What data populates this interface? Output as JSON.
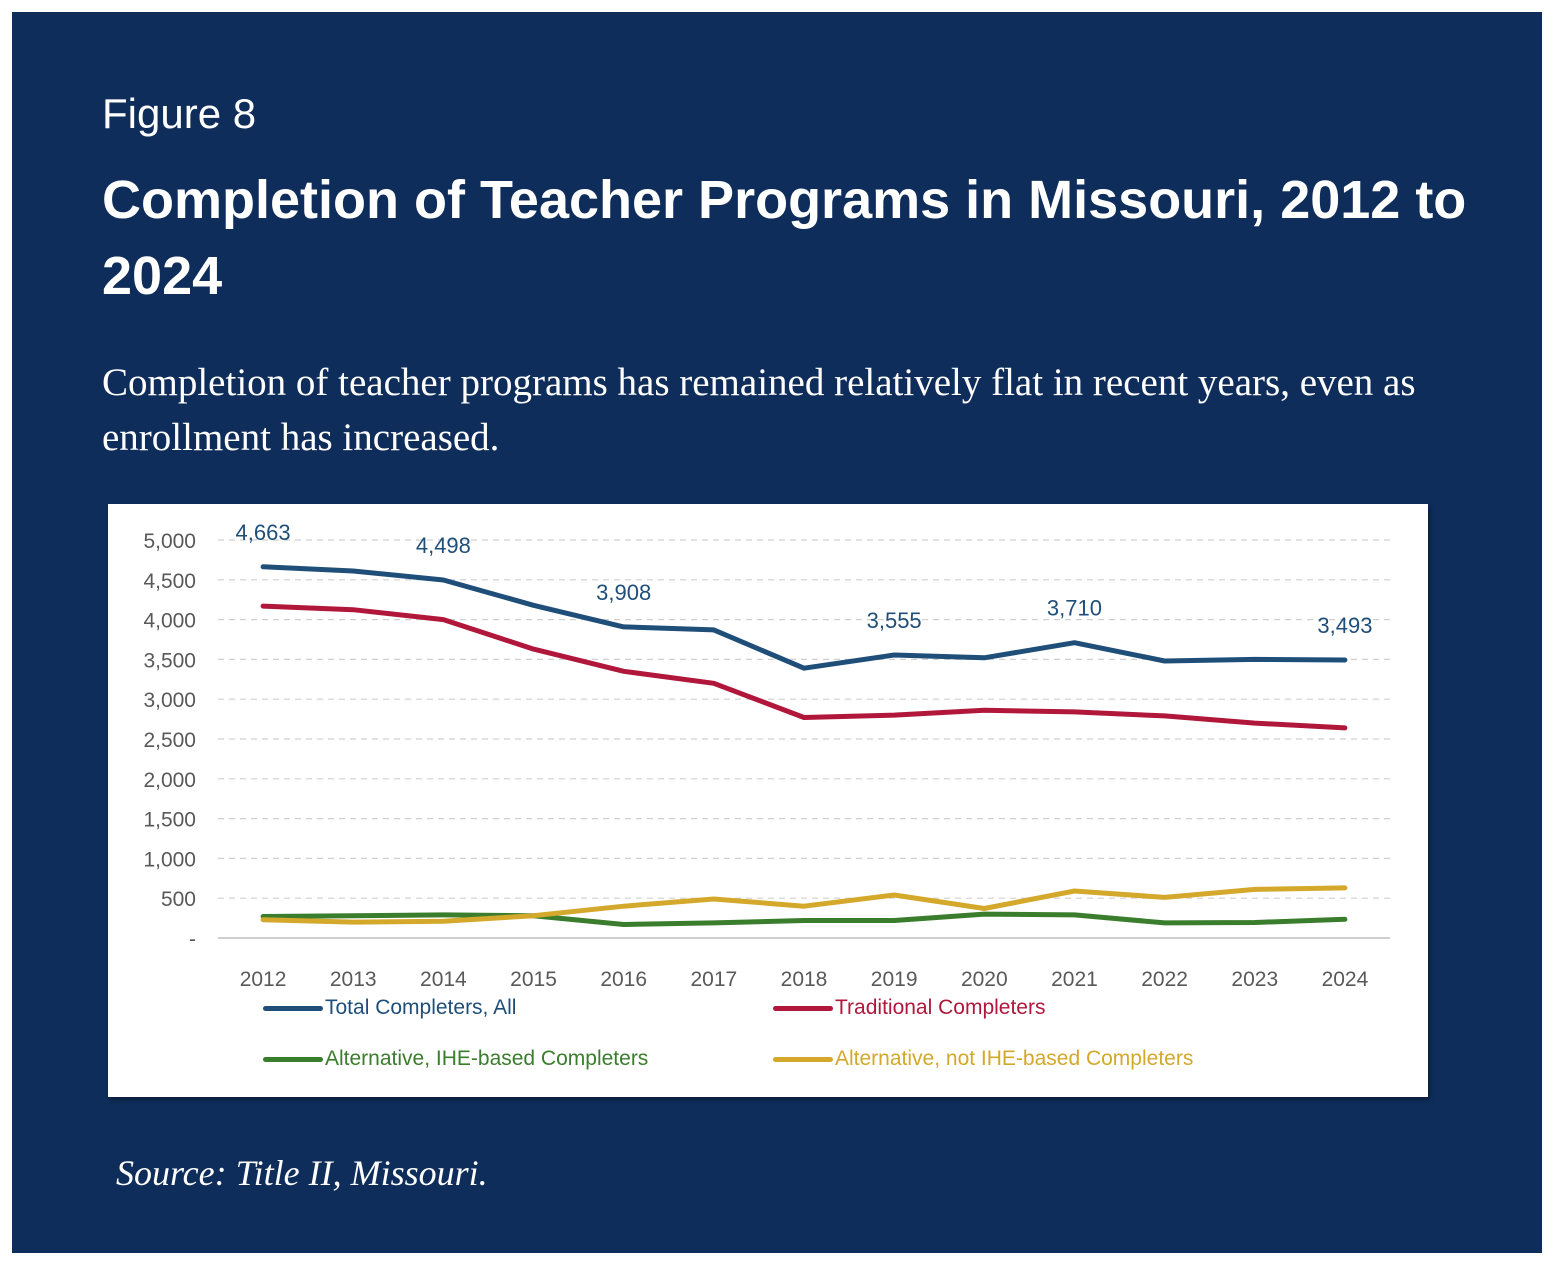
{
  "figure_label": "Figure 8",
  "title": "Completion of Teacher Programs in Missouri, 2012 to 2024",
  "subtitle": "Completion of teacher programs has remained relatively flat in recent years, even as enrollment has increased.",
  "source": "Source: Title II, Missouri.",
  "chart_data": {
    "type": "line",
    "x": [
      "2012",
      "2013",
      "2014",
      "2015",
      "2016",
      "2017",
      "2018",
      "2019",
      "2020",
      "2021",
      "2022",
      "2023",
      "2024"
    ],
    "ylim": [
      0,
      5000
    ],
    "yticks": [
      0,
      500,
      1000,
      1500,
      2000,
      2500,
      3000,
      3500,
      4000,
      4500,
      5000
    ],
    "ytick_labels": [
      "-",
      "500",
      "1,000",
      "1,500",
      "2,000",
      "2,500",
      "3,000",
      "3,500",
      "4,000",
      "4,500",
      "5,000"
    ],
    "grid": "horizontal dashed",
    "legend_position": "bottom",
    "series": [
      {
        "name": "Total Completers, All",
        "color": "#1f4e79",
        "values": [
          4663,
          4610,
          4498,
          4180,
          3908,
          3870,
          3390,
          3555,
          3520,
          3710,
          3480,
          3500,
          3493
        ]
      },
      {
        "name": "Traditional Completers",
        "color": "#b0173a",
        "values": [
          4170,
          4125,
          4000,
          3630,
          3350,
          3200,
          2770,
          2800,
          2860,
          2840,
          2790,
          2700,
          2640
        ]
      },
      {
        "name": "Alternative, IHE-based Completers",
        "color": "#3a7d2c",
        "values": [
          270,
          280,
          290,
          280,
          170,
          190,
          220,
          220,
          300,
          290,
          190,
          195,
          235
        ]
      },
      {
        "name": "Alternative, not IHE-based Completers",
        "color": "#d4a82a",
        "values": [
          230,
          200,
          210,
          280,
          400,
          490,
          400,
          540,
          370,
          590,
          510,
          610,
          630
        ]
      }
    ],
    "data_labels": [
      {
        "series": "Total Completers, All",
        "x": "2012",
        "text": "4,663"
      },
      {
        "series": "Total Completers, All",
        "x": "2014",
        "text": "4,498"
      },
      {
        "series": "Total Completers, All",
        "x": "2016",
        "text": "3,908"
      },
      {
        "series": "Total Completers, All",
        "x": "2019",
        "text": "3,555"
      },
      {
        "series": "Total Completers, All",
        "x": "2021",
        "text": "3,710"
      },
      {
        "series": "Total Completers, All",
        "x": "2024",
        "text": "3,493"
      }
    ]
  }
}
